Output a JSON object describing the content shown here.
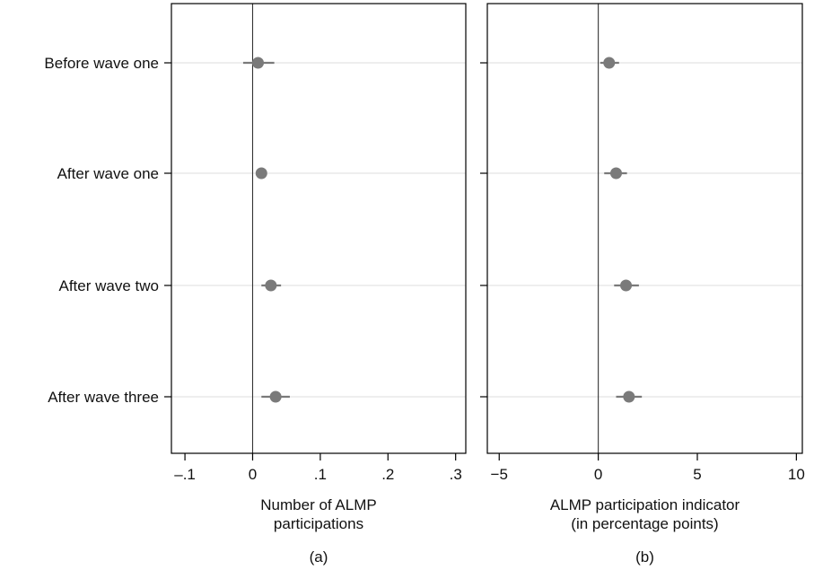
{
  "chart_data": [
    {
      "type": "scatter",
      "panel_label": "(a)",
      "xlabel_lines": [
        "Number of ALMP",
        "participations"
      ],
      "xlim": [
        -0.12,
        0.315
      ],
      "x_ticks": [
        -0.1,
        0,
        0.1,
        0.2,
        0.3
      ],
      "x_tick_labels": [
        "–.1",
        "0",
        ".1",
        ".2",
        ".3"
      ],
      "categories": [
        "Before wave one",
        "After wave one",
        "After wave two",
        "After wave three"
      ],
      "estimates": [
        0.008,
        0.013,
        0.027,
        0.034
      ],
      "ci_low": [
        -0.014,
        0.008,
        0.013,
        0.013
      ],
      "ci_high": [
        0.032,
        0.018,
        0.042,
        0.055
      ],
      "reference_line_x": 0,
      "grid": "horizontal"
    },
    {
      "type": "scatter",
      "panel_label": "(b)",
      "xlabel_lines": [
        "ALMP participation indicator",
        "(in percentage points)"
      ],
      "xlim": [
        -5.6,
        10.3
      ],
      "x_ticks": [
        -5,
        0,
        5,
        10
      ],
      "x_tick_labels": [
        "−5",
        "0",
        "5",
        "10"
      ],
      "categories": [
        "Before wave one",
        "After wave one",
        "After wave two",
        "After wave three"
      ],
      "estimates": [
        0.55,
        0.9,
        1.4,
        1.55
      ],
      "ci_low": [
        0.1,
        0.3,
        0.8,
        0.9
      ],
      "ci_high": [
        1.05,
        1.45,
        2.05,
        2.2
      ],
      "reference_line_x": 0,
      "grid": "horizontal"
    }
  ],
  "colors": {
    "marker": "#7a7a7a",
    "ci_line": "#7a7a7a",
    "grid": "#dedede",
    "frame": "#000000"
  }
}
